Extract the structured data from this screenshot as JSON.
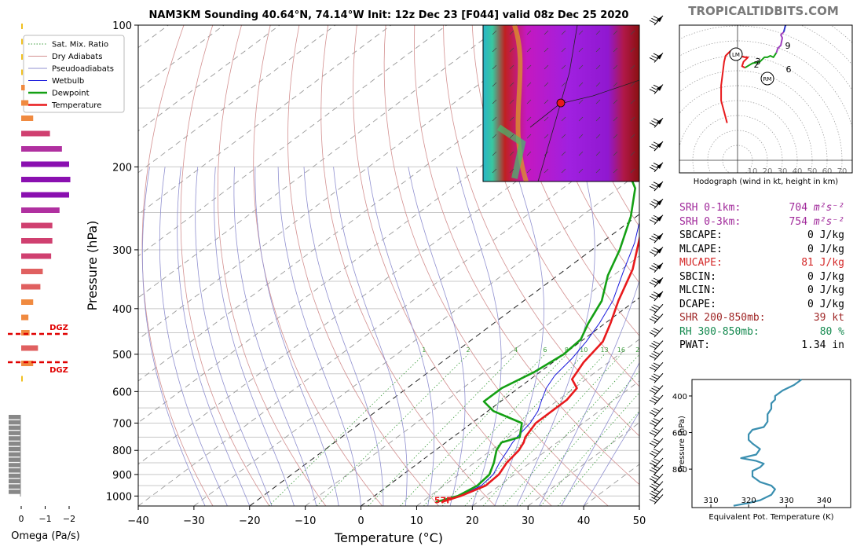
{
  "title": "NAM3KM Sounding 40.64°N, 74.14°W Init: 12z Dec 23 [F044] valid 08z Dec 25 2020",
  "brand": "TROPICALTIDBITS.COM",
  "skewt": {
    "xlabel": "Temperature (°C)",
    "ylabel": "Pressure (hPa)",
    "xticks": [
      "−40",
      "−30",
      "−20",
      "−10",
      "0",
      "10",
      "20",
      "30",
      "40",
      "50"
    ],
    "xtick_values": [
      -40,
      -30,
      -20,
      -10,
      0,
      10,
      20,
      30,
      40,
      50
    ],
    "yticks": [
      "100",
      "200",
      "300",
      "400",
      "500",
      "600",
      "700",
      "800",
      "900",
      "1000"
    ],
    "ytick_values": [
      100,
      200,
      300,
      400,
      500,
      600,
      700,
      800,
      900,
      1000
    ],
    "xlim": [
      -40,
      50
    ],
    "ylim": [
      1050,
      100
    ],
    "log_pressure": true,
    "skew_deg_per_decade": 113,
    "surface_label": "57F",
    "mix_ratio_labels": [
      "1",
      "2",
      "4",
      "6",
      "8",
      "10",
      "13",
      "16",
      "20",
      "24",
      "30",
      "36"
    ],
    "legend": [
      "Sat. Mix. Ratio",
      "Dry Adiabats",
      "Pseudoadiabats",
      "Wetbulb",
      "Dewpoint",
      "Temperature"
    ],
    "legend_position": "top-left"
  },
  "colors": {
    "temperature": "#e8191c",
    "dewpoint": "#14a014",
    "wetbulb": "#1a1adc",
    "dry_adiabat": "#d39090",
    "pseudoadiabat": "#9090d0",
    "mix_ratio": "#3c9c3c",
    "isotherm": "#555555",
    "hodo_blue": "#2430c8",
    "hodo_purple": "#a040c0",
    "thetae": "#3a8fb0",
    "omega_gray": "#888888",
    "dgz": "#e00000"
  },
  "chart_data": [
    {
      "type": "line",
      "name": "skew-t",
      "series": [
        {
          "name": "Temperature",
          "points": [
            [
              13.5,
              1030
            ],
            [
              15.5,
              1000
            ],
            [
              17.5,
              950
            ],
            [
              17.2,
              900
            ],
            [
              15.8,
              850
            ],
            [
              15,
              800
            ],
            [
              14,
              770
            ],
            [
              13,
              750
            ],
            [
              11.5,
              700
            ],
            [
              11.5,
              660
            ],
            [
              11.5,
              625
            ],
            [
              10.5,
              590
            ],
            [
              7.5,
              565
            ],
            [
              5.5,
              520
            ],
            [
              4,
              470
            ],
            [
              1,
              430
            ],
            [
              -3,
              385
            ],
            [
              -8,
              330
            ],
            [
              -14,
              285
            ],
            [
              -22,
              235
            ],
            [
              -27,
              205
            ],
            [
              -26,
              165
            ],
            [
              -3,
              115
            ],
            [
              2,
              100
            ]
          ]
        },
        {
          "name": "Dewpoint",
          "points": [
            [
              12.5,
              1030
            ],
            [
              15,
              1000
            ],
            [
              16,
              950
            ],
            [
              15.5,
              900
            ],
            [
              13.5,
              850
            ],
            [
              11,
              800
            ],
            [
              10,
              770
            ],
            [
              12,
              750
            ],
            [
              9,
              700
            ],
            [
              1,
              660
            ],
            [
              -3,
              630
            ],
            [
              -3,
              590
            ],
            [
              -1,
              545
            ],
            [
              0,
              500
            ],
            [
              -0.5,
              465
            ],
            [
              -3,
              430
            ],
            [
              -6,
              385
            ],
            [
              -11,
              340
            ],
            [
              -15,
              300
            ],
            [
              -21,
              255
            ],
            [
              -27,
              222
            ],
            [
              -37,
              190
            ],
            [
              -45,
              160
            ],
            [
              -44,
              125
            ],
            [
              -30,
              100
            ]
          ]
        },
        {
          "name": "Wetbulb",
          "points": [
            [
              12.8,
              1030
            ],
            [
              15.3,
              1000
            ],
            [
              16.7,
              950
            ],
            [
              16.2,
              900
            ],
            [
              14.5,
              850
            ],
            [
              13,
              800
            ],
            [
              12,
              770
            ],
            [
              11.5,
              750
            ],
            [
              10.5,
              700
            ],
            [
              9,
              660
            ],
            [
              7,
              625
            ],
            [
              5,
              590
            ],
            [
              3.5,
              555
            ],
            [
              2.5,
              510
            ],
            [
              1,
              470
            ],
            [
              -1,
              430
            ],
            [
              -4,
              385
            ],
            [
              -9,
              335
            ],
            [
              -14,
              290
            ],
            [
              -22,
              238
            ],
            [
              -27,
              205
            ],
            [
              -26,
              165
            ],
            [
              -3.5,
              115
            ],
            [
              1.5,
              100
            ]
          ]
        }
      ]
    },
    {
      "type": "bar",
      "name": "omega",
      "xlabel": "Omega (Pa/s)",
      "xticks": [
        "0",
        "−1",
        "−2"
      ],
      "xtick_values": [
        0,
        -1,
        -2
      ],
      "values": [
        0,
        -0.05,
        -0.05,
        -0.05,
        -0.15,
        -0.3,
        -0.5,
        -1.2,
        -1.7,
        -2.0,
        -2.05,
        -2.0,
        -1.6,
        -1.3,
        -1.3,
        -1.25,
        -0.9,
        -0.8,
        -0.5,
        -0.3,
        -0.35,
        -0.7,
        -0.5,
        -0.05
      ]
    },
    {
      "type": "line",
      "name": "hodograph",
      "xlabel": "Hodograph (wind in kt, height in km)",
      "ring_labels": [
        "10",
        "20",
        "30",
        "40",
        "50",
        "60",
        "70"
      ],
      "height_labels": [
        "1",
        "2",
        "3",
        "6",
        "9"
      ],
      "markers": [
        "LM",
        "RM"
      ],
      "segments": [
        {
          "name": "0-3 km",
          "color": "red",
          "points": [
            [
              -7,
              -35
            ],
            [
              -11,
              -20
            ],
            [
              -11,
              -10
            ],
            [
              -10,
              -2
            ],
            [
              -9,
              6
            ],
            [
              -8,
              10
            ],
            [
              -5,
              13
            ],
            [
              -1,
              11
            ],
            [
              1,
              10
            ],
            [
              5,
              9
            ],
            [
              7,
              9
            ],
            [
              4,
              6
            ],
            [
              3,
              3
            ],
            [
              5,
              2
            ]
          ]
        },
        {
          "name": "3-6 km",
          "color": "green",
          "points": [
            [
              5,
              2
            ],
            [
              10,
              5
            ],
            [
              15,
              6
            ],
            [
              18,
              9
            ],
            [
              20,
              9
            ],
            [
              22,
              10
            ],
            [
              24,
              9
            ],
            [
              26,
              12
            ]
          ]
        },
        {
          "name": "6-9 km",
          "color": "purple",
          "points": [
            [
              26,
              12
            ],
            [
              27,
              15
            ],
            [
              29,
              17
            ],
            [
              30,
              22
            ],
            [
              29,
              24
            ],
            [
              31,
              26
            ]
          ]
        },
        {
          "name": "9+ km",
          "color": "blue",
          "points": [
            [
              31,
              26
            ],
            [
              32,
              30
            ],
            [
              34,
              33
            ],
            [
              37,
              35
            ],
            [
              40,
              34
            ],
            [
              44,
              32
            ]
          ]
        }
      ]
    },
    {
      "type": "line",
      "name": "theta-e",
      "xlabel": "Equivalent Pot. Temperature (K)",
      "ylabel": "Pressure (hPa)",
      "xticks": [
        "310",
        "320",
        "330",
        "340"
      ],
      "xtick_values": [
        310,
        320,
        330,
        340
      ],
      "yticks": [
        "400",
        "600",
        "800"
      ],
      "ytick_values": [
        400,
        600,
        800
      ],
      "xlim": [
        305,
        347
      ],
      "ylim": [
        1010,
        310
      ],
      "values": [
        [
          316,
          1000
        ],
        [
          320,
          985
        ],
        [
          323,
          970
        ],
        [
          326,
          940
        ],
        [
          327,
          910
        ],
        [
          326,
          890
        ],
        [
          323,
          870
        ],
        [
          321,
          840
        ],
        [
          321,
          810
        ],
        [
          323,
          790
        ],
        [
          324,
          770
        ],
        [
          322,
          755
        ],
        [
          318,
          740
        ],
        [
          322,
          720
        ],
        [
          323,
          690
        ],
        [
          321,
          660
        ],
        [
          320,
          640
        ],
        [
          320,
          610
        ],
        [
          321,
          585
        ],
        [
          324,
          570
        ],
        [
          325,
          540
        ],
        [
          325,
          500
        ],
        [
          326,
          470
        ],
        [
          326,
          440
        ],
        [
          327,
          420
        ],
        [
          327,
          400
        ],
        [
          329,
          370
        ],
        [
          332,
          340
        ],
        [
          334,
          310
        ]
      ]
    }
  ],
  "stats": [
    {
      "label": "SRH 0-1km:",
      "value": "704",
      "unit": "m²s⁻²",
      "color": "#a0289a"
    },
    {
      "label": "SRH 0-3km:",
      "value": "754",
      "unit": "m²s⁻²",
      "color": "#a0289a"
    },
    {
      "label": "SBCAPE:",
      "value": "0 J/kg",
      "color": "#000000"
    },
    {
      "label": "MLCAPE:",
      "value": "0 J/kg",
      "color": "#000000"
    },
    {
      "label": "MUCAPE:",
      "value": "81 J/kg",
      "color": "#d42828"
    },
    {
      "label": "SBCIN:",
      "value": "0 J/kg",
      "color": "#000000"
    },
    {
      "label": "MLCIN:",
      "value": "0 J/kg",
      "color": "#000000"
    },
    {
      "label": "DCAPE:",
      "value": "0 J/kg",
      "color": "#000000"
    },
    {
      "label": "SHR 200-850mb:",
      "value": "39 kt",
      "color": "#a02828"
    },
    {
      "label": "RH 300-850mb:",
      "value": "80 %",
      "color": "#168a50"
    },
    {
      "label": "PWAT:",
      "value": "1.34 in",
      "color": "#000000"
    }
  ],
  "dgz_label": "DGZ"
}
